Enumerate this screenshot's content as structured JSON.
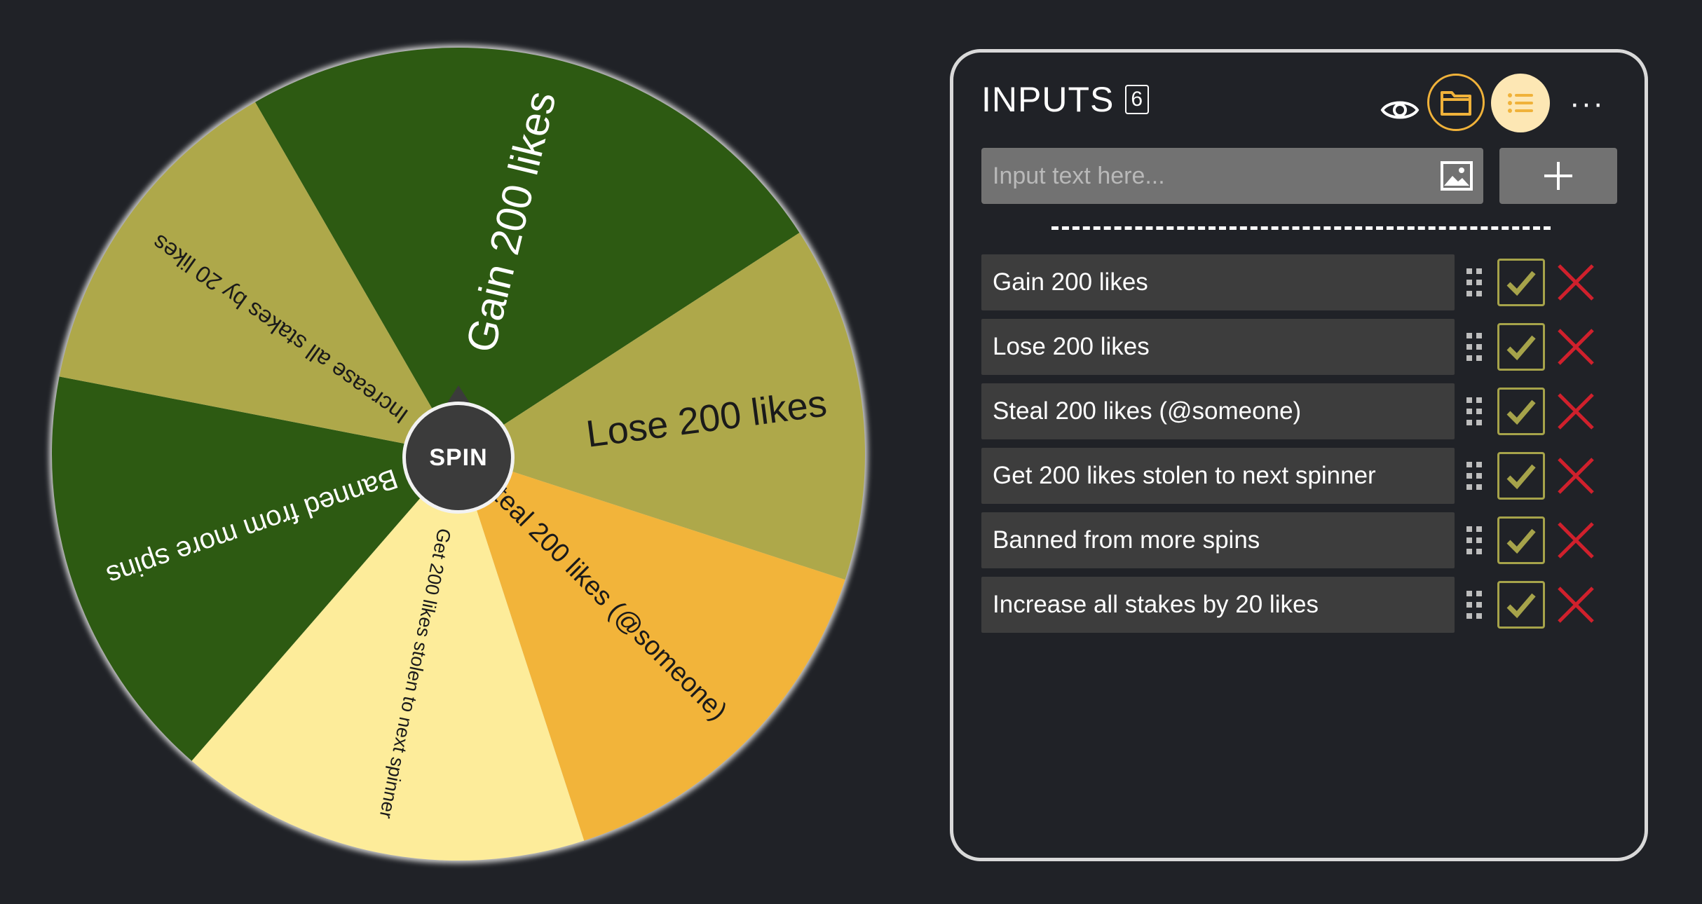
{
  "wheel": {
    "spin_label": "SPIN",
    "slices": [
      {
        "label": "Gain 200 likes",
        "color": "#2d5a12",
        "text_color": "#ffffff"
      },
      {
        "label": "Lose 200 likes",
        "color": "#aea84a",
        "text_color": "#1a1a1a"
      },
      {
        "label": "Steal 200 likes (@someone)",
        "color": "#f2b43a",
        "text_color": "#1a1a1a"
      },
      {
        "label": "Get 200 likes stolen to next spinner",
        "color": "#fdec9a",
        "text_color": "#1a1a1a"
      },
      {
        "label": "Banned from more spins",
        "color": "#2d5a12",
        "text_color": "#ffffff"
      },
      {
        "label": "Increase all stakes by 20 likes",
        "color": "#aea84a",
        "text_color": "#1a1a1a"
      }
    ]
  },
  "panel": {
    "title": "INPUTS",
    "count": "6",
    "more_label": "···",
    "input": {
      "placeholder": "Input text here...",
      "value": ""
    },
    "entries": [
      {
        "label": "Gain 200 likes",
        "checked": true
      },
      {
        "label": "Lose 200 likes",
        "checked": true
      },
      {
        "label": "Steal 200 likes (@someone)",
        "checked": true
      },
      {
        "label": "Get 200 likes stolen to next spinner",
        "checked": true
      },
      {
        "label": "Banned from more spins",
        "checked": true
      },
      {
        "label": "Increase all stakes by 20 likes",
        "checked": true
      }
    ]
  },
  "colors": {
    "background": "#202227",
    "accent_orange": "#f0b23a",
    "check_color": "#a6a34a",
    "delete_color": "#d0202c"
  },
  "icons": [
    "eye-icon",
    "folder-icon",
    "list-icon",
    "more-icon",
    "image-icon",
    "plus-icon",
    "drag-handle-icon",
    "checkmark-icon",
    "close-icon"
  ]
}
